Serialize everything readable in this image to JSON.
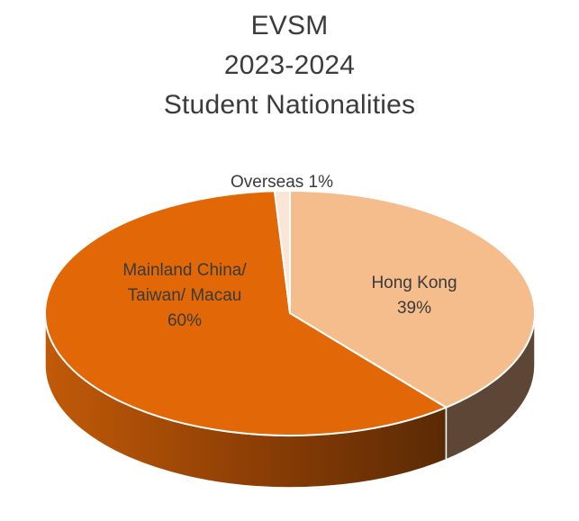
{
  "chart_data": {
    "type": "pie",
    "title_lines": [
      "EVSM",
      "2023-2024",
      "Student Nationalities"
    ],
    "slices": [
      {
        "label_lines": [
          "Hong Kong",
          "39%"
        ],
        "value": 39,
        "color": "#f5bd8c",
        "side_color": "#5e4636"
      },
      {
        "label_lines": [
          "Mainland China/",
          "Taiwan/ Macau",
          "60%"
        ],
        "value": 60,
        "color": "#e26807",
        "side_color": "#8a3d05"
      },
      {
        "label_lines": [
          "Overseas 1%"
        ],
        "value": 1,
        "color": "#fbe5d6",
        "side_color": "#d9c4b5"
      }
    ],
    "style": "3d-pie"
  }
}
